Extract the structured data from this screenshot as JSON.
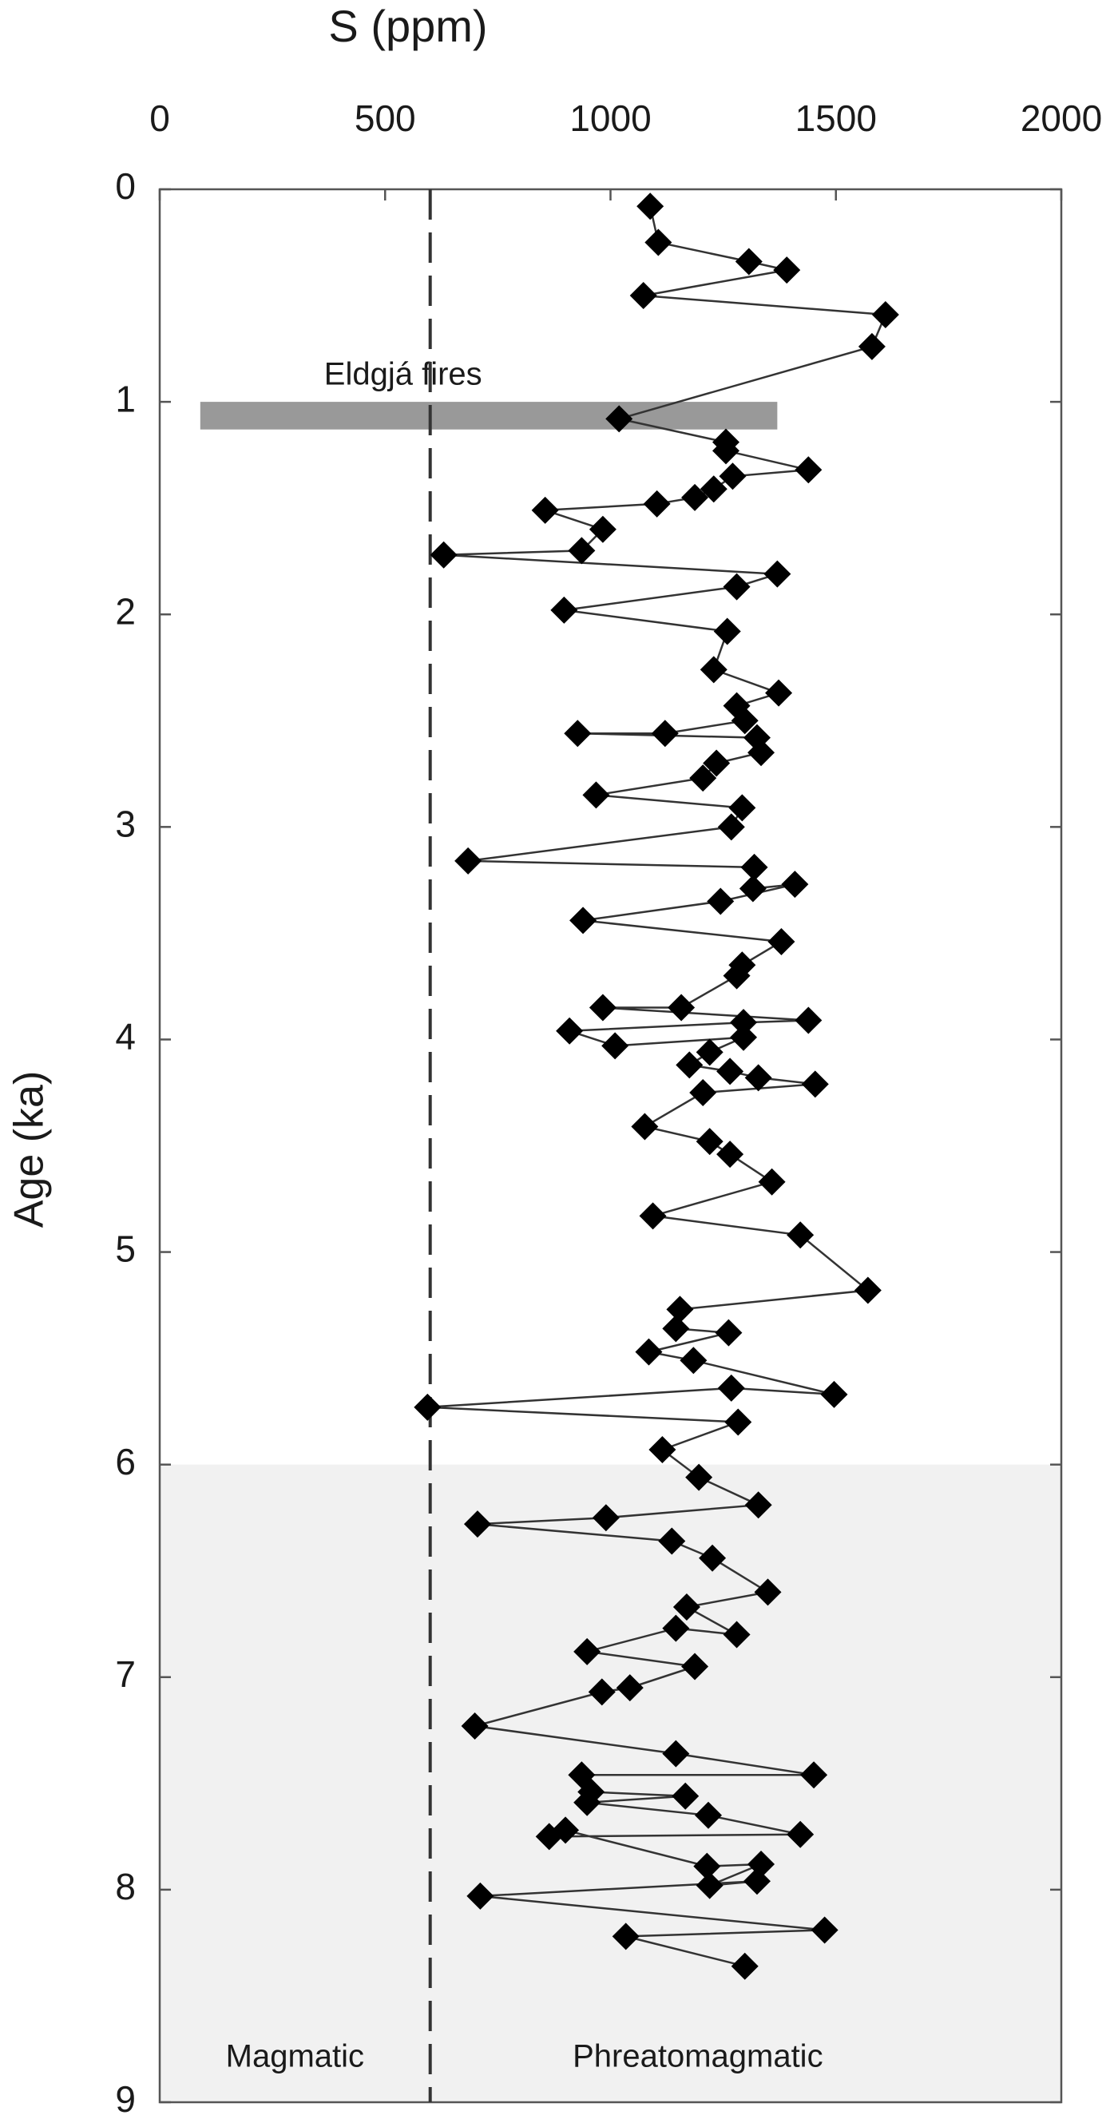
{
  "chart_data": {
    "type": "line",
    "title": "S (ppm)",
    "y_label": "Age (ka)",
    "xlim": [
      0,
      2000
    ],
    "xticks": [
      0,
      500,
      1000,
      1500,
      2000
    ],
    "ylim": [
      0,
      9
    ],
    "yticks": [
      0,
      1,
      2,
      3,
      4,
      5,
      6,
      7,
      8,
      9
    ],
    "y_reversed": true,
    "x_axis_position": "top",
    "color": "#000000",
    "marker": "diamond",
    "x": [
      1088,
      1106,
      1307,
      1391,
      1073,
      1610,
      1580,
      1019,
      1256,
      1256,
      1439,
      1271,
      1229,
      1187,
      1103,
      855,
      983,
      936,
      630,
      1370,
      1280,
      897,
      1259,
      1229,
      1373,
      1280,
      1298,
      1121,
      927,
      1325,
      1334,
      1235,
      1205,
      968,
      1292,
      1268,
      684,
      1319,
      1316,
      1409,
      1244,
      939,
      1379,
      1292,
      1280,
      1157,
      983,
      1439,
      1295,
      909,
      1010,
      1295,
      1220,
      1175,
      1265,
      1328,
      1454,
      1205,
      1076,
      1220,
      1265,
      1358,
      1094,
      1421,
      1571,
      1154,
      1145,
      1262,
      1085,
      1184,
      1496,
      1268,
      594,
      1283,
      1115,
      1196,
      1328,
      990,
      705,
      1136,
      1226,
      1349,
      1169,
      1280,
      1145,
      948,
      1187,
      1043,
      981,
      699,
      1145,
      1451,
      936,
      957,
      1166,
      948,
      1217,
      1421,
      864,
      900,
      1214,
      1334,
      1220,
      1325,
      711,
      1475,
      1034,
      1298
    ],
    "values": [
      0.08,
      0.25,
      0.34,
      0.38,
      0.5,
      0.59,
      0.74,
      1.08,
      1.19,
      1.23,
      1.32,
      1.35,
      1.41,
      1.45,
      1.48,
      1.51,
      1.6,
      1.7,
      1.72,
      1.81,
      1.87,
      1.98,
      2.08,
      2.26,
      2.37,
      2.43,
      2.5,
      2.56,
      2.56,
      2.58,
      2.65,
      2.7,
      2.77,
      2.85,
      2.91,
      3.0,
      3.16,
      3.19,
      3.29,
      3.27,
      3.35,
      3.44,
      3.54,
      3.65,
      3.7,
      3.85,
      3.85,
      3.91,
      3.92,
      3.96,
      4.03,
      3.99,
      4.06,
      4.12,
      4.15,
      4.18,
      4.21,
      4.25,
      4.41,
      4.48,
      4.54,
      4.67,
      4.83,
      4.92,
      5.18,
      5.27,
      5.36,
      5.38,
      5.47,
      5.51,
      5.67,
      5.64,
      5.73,
      5.8,
      5.93,
      6.06,
      6.19,
      6.25,
      6.28,
      6.36,
      6.44,
      6.6,
      6.67,
      6.8,
      6.77,
      6.88,
      6.95,
      7.05,
      7.07,
      7.23,
      7.36,
      7.46,
      7.46,
      7.54,
      7.56,
      7.59,
      7.65,
      7.74,
      7.75,
      7.72,
      7.89,
      7.88,
      7.98,
      7.96,
      8.03,
      8.19,
      8.22,
      8.36
    ],
    "event_band": {
      "text": "Eldgjá fires",
      "x_range": [
        90,
        1370
      ],
      "y_range": [
        1.0,
        1.13
      ],
      "color": "#999999"
    },
    "shaded_region": {
      "y_range": [
        6,
        9
      ],
      "color": "#f1f1f1"
    },
    "threshold": {
      "x": 600,
      "color": "#333333",
      "dashed": true
    },
    "region_labels": [
      "Magmatic",
      "Phreatomagmatic"
    ]
  }
}
